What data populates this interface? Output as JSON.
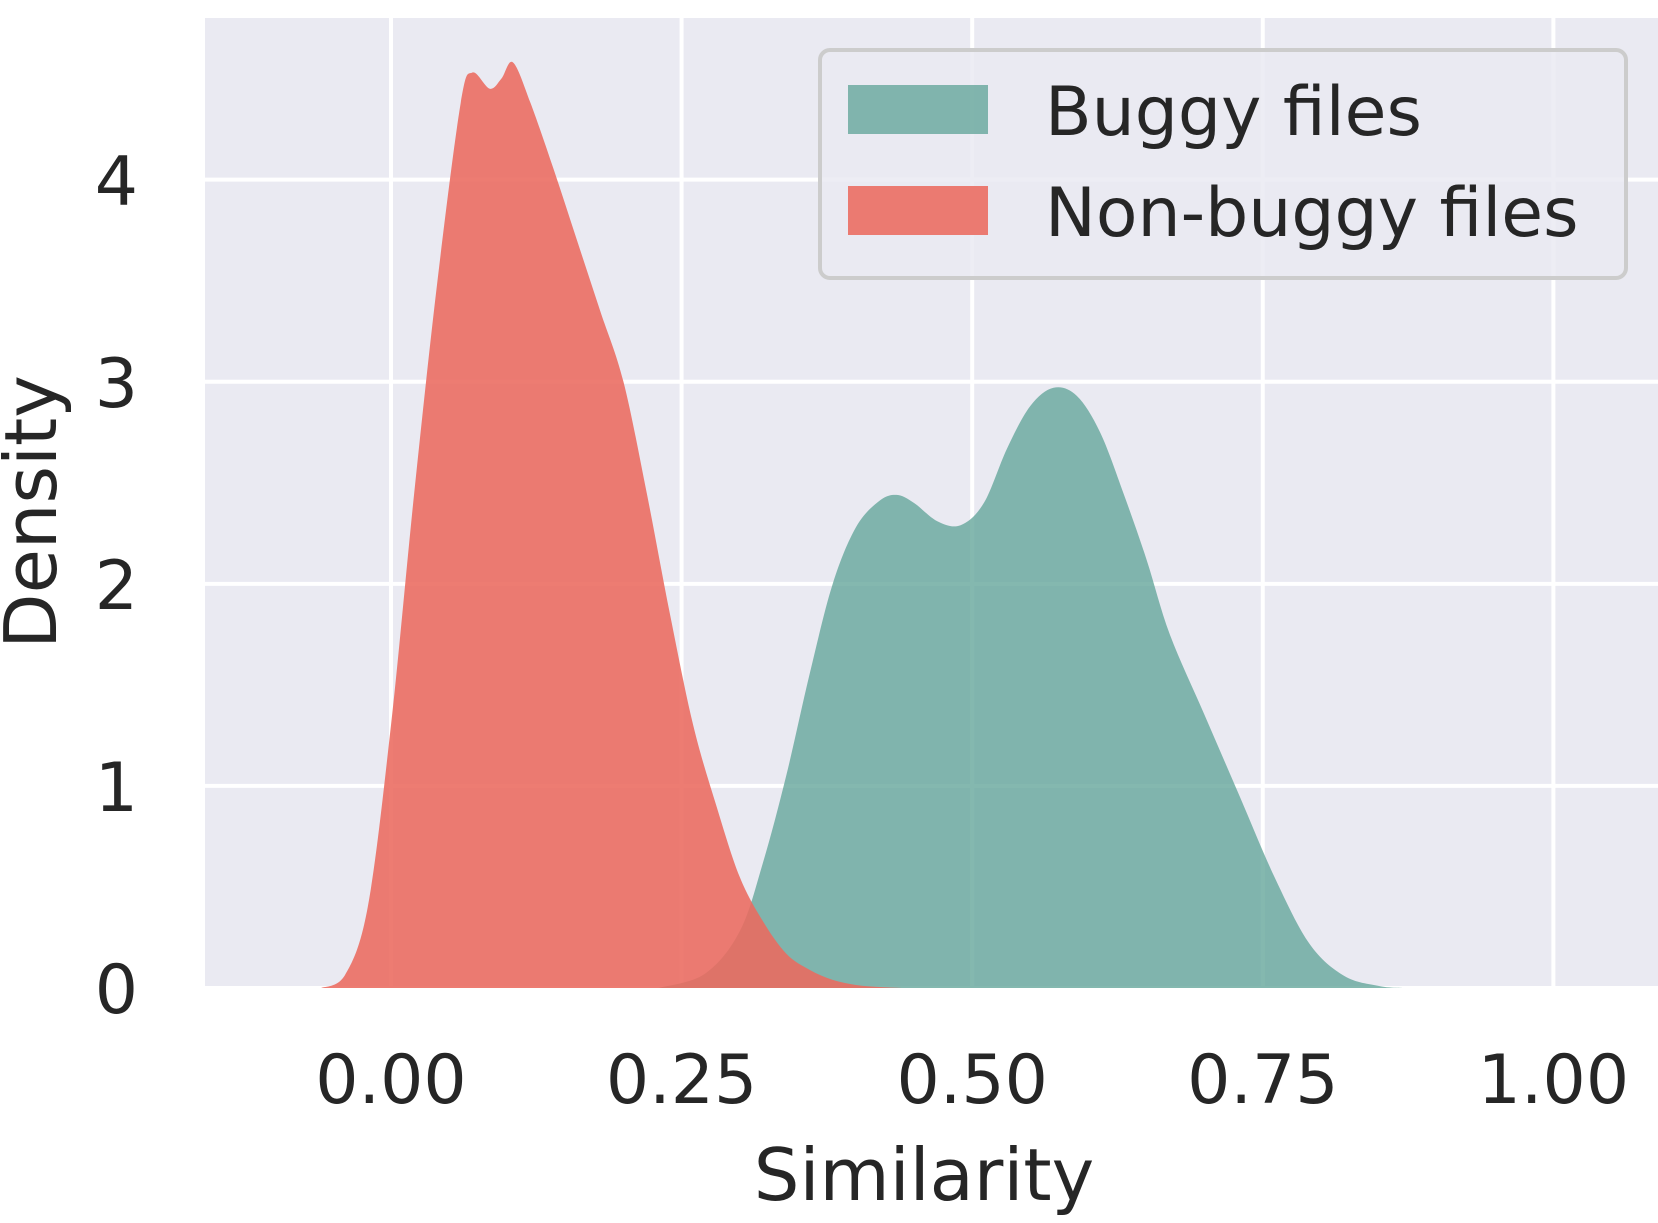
{
  "chart_data": {
    "type": "area",
    "subtype": "kde-density",
    "xlabel": "Similarity",
    "ylabel": "Density",
    "xlim": [
      -0.16,
      1.09
    ],
    "ylim": [
      0,
      4.8
    ],
    "xticks": [
      0.0,
      0.25,
      0.5,
      0.75,
      1.0
    ],
    "xtick_labels": [
      "0.00",
      "0.25",
      "0.50",
      "0.75",
      "1.00"
    ],
    "yticks": [
      0,
      1,
      2,
      3,
      4
    ],
    "ytick_labels": [
      "0",
      "1",
      "2",
      "3",
      "4"
    ],
    "grid": true,
    "legend_position": "top-right",
    "background_color": "#EAEAF2",
    "series": [
      {
        "name": "Buggy files",
        "color": "#69A89E",
        "opacity": 0.82,
        "x": [
          0.23,
          0.27,
          0.3,
          0.32,
          0.34,
          0.36,
          0.38,
          0.4,
          0.42,
          0.435,
          0.45,
          0.47,
          0.49,
          0.51,
          0.53,
          0.55,
          0.57,
          0.59,
          0.61,
          0.63,
          0.65,
          0.67,
          0.7,
          0.73,
          0.76,
          0.79,
          0.82,
          0.85,
          0.87
        ],
        "y": [
          0.0,
          0.07,
          0.28,
          0.62,
          1.05,
          1.55,
          2.0,
          2.28,
          2.41,
          2.44,
          2.4,
          2.31,
          2.29,
          2.4,
          2.67,
          2.88,
          2.97,
          2.93,
          2.75,
          2.45,
          2.12,
          1.75,
          1.35,
          0.95,
          0.55,
          0.22,
          0.06,
          0.01,
          0.0
        ]
      },
      {
        "name": "Non-buggy files",
        "color": "#EA6A5E",
        "opacity": 0.88,
        "x": [
          -0.06,
          -0.04,
          -0.02,
          0.0,
          0.02,
          0.04,
          0.06,
          0.07,
          0.085,
          0.095,
          0.105,
          0.12,
          0.14,
          0.16,
          0.18,
          0.2,
          0.22,
          0.24,
          0.26,
          0.28,
          0.3,
          0.32,
          0.34,
          0.36,
          0.38,
          0.4,
          0.42,
          0.44
        ],
        "y": [
          0.0,
          0.06,
          0.4,
          1.3,
          2.45,
          3.5,
          4.38,
          4.53,
          4.45,
          4.5,
          4.58,
          4.38,
          4.05,
          3.7,
          3.35,
          3.0,
          2.45,
          1.85,
          1.3,
          0.9,
          0.55,
          0.33,
          0.17,
          0.09,
          0.04,
          0.015,
          0.005,
          0.0
        ]
      }
    ]
  }
}
